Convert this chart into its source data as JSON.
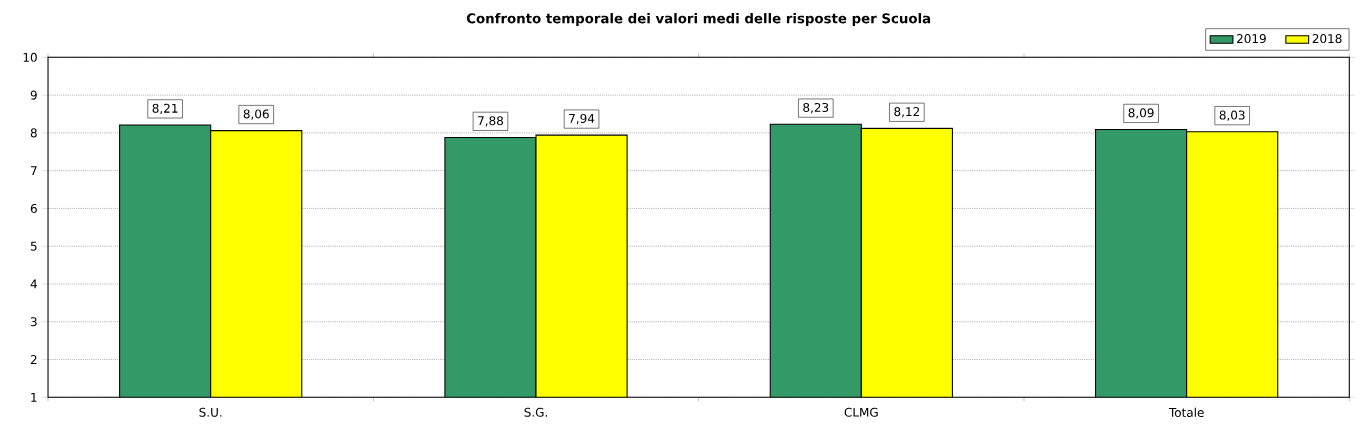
{
  "chart_data": {
    "type": "bar",
    "title": "Confronto temporale dei valori medi delle risposte per Scuola",
    "categories": [
      "S.U.",
      "S.G.",
      "CLMG",
      "Totale"
    ],
    "series": [
      {
        "name": "2019",
        "color": "#339966",
        "values": [
          8.21,
          7.88,
          8.23,
          8.09
        ],
        "value_labels": [
          "8,21",
          "7,88",
          "8,23",
          "8,09"
        ]
      },
      {
        "name": "2018",
        "color": "#ffff00",
        "values": [
          8.06,
          7.94,
          8.12,
          8.03
        ],
        "value_labels": [
          "8,06",
          "7,94",
          "8,12",
          "8,03"
        ]
      }
    ],
    "ylim": [
      1,
      10
    ],
    "yticks": [
      1,
      2,
      3,
      4,
      5,
      6,
      7,
      8,
      9,
      10
    ],
    "grid": "y",
    "legend": "top right"
  }
}
